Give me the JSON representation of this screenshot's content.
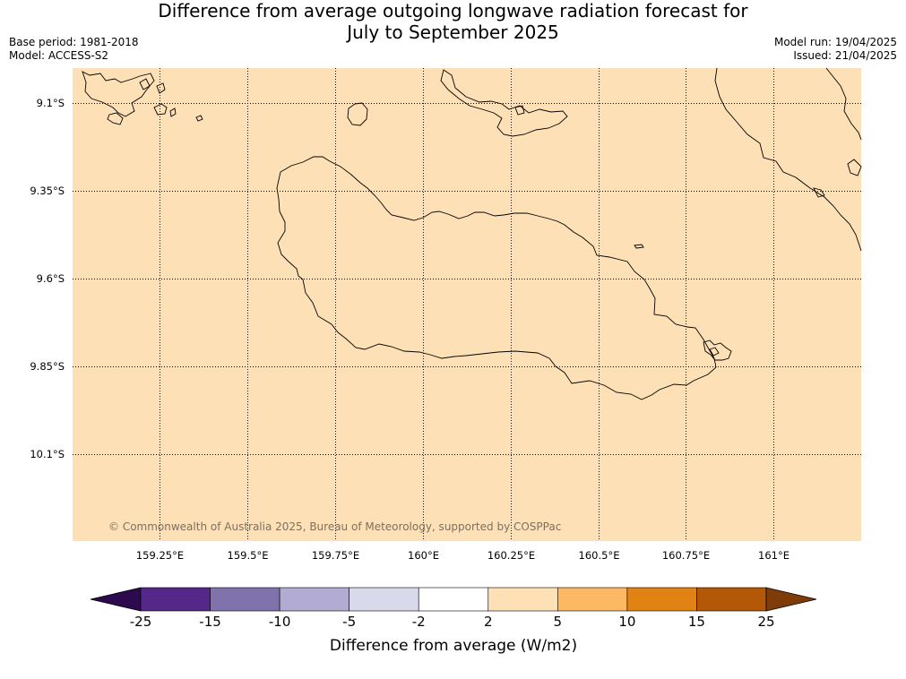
{
  "title": {
    "line1": "Difference from average outgoing longwave radiation forecast for",
    "line2": "July to September 2025"
  },
  "meta_left": {
    "base_period": "Base period: 1981-2018",
    "model": "Model: ACCESS-S2"
  },
  "meta_right": {
    "model_run": "Model run: 19/04/2025",
    "issued": "Issued: 21/04/2025"
  },
  "map": {
    "fill_color": "#fde0b6",
    "coastline_color": "#000000",
    "longitude_labels": [
      "159.25°E",
      "159.5°E",
      "159.75°E",
      "160°E",
      "160.25°E",
      "160.5°E",
      "160.75°E",
      "161°E"
    ],
    "latitude_labels": [
      "9.1°S",
      "9.35°S",
      "9.6°S",
      "9.85°S",
      "10.1°S"
    ],
    "copyright": "© Commonwealth of Australia 2025, Bureau of Meteorology, supported by COSPPac"
  },
  "colorbar": {
    "title": "Difference from average (W/m2)",
    "tick_labels": [
      "-25",
      "-15",
      "-10",
      "-5",
      "-2",
      "2",
      "5",
      "10",
      "15",
      "25"
    ],
    "under_color": "#2d0a4e",
    "over_color": "#7f3b08",
    "bin_colors": [
      "#542788",
      "#8073ac",
      "#b2abd2",
      "#d8daeb",
      "#ffffff",
      "#fde0b6",
      "#fdb863",
      "#e08214",
      "#b35806"
    ]
  }
}
